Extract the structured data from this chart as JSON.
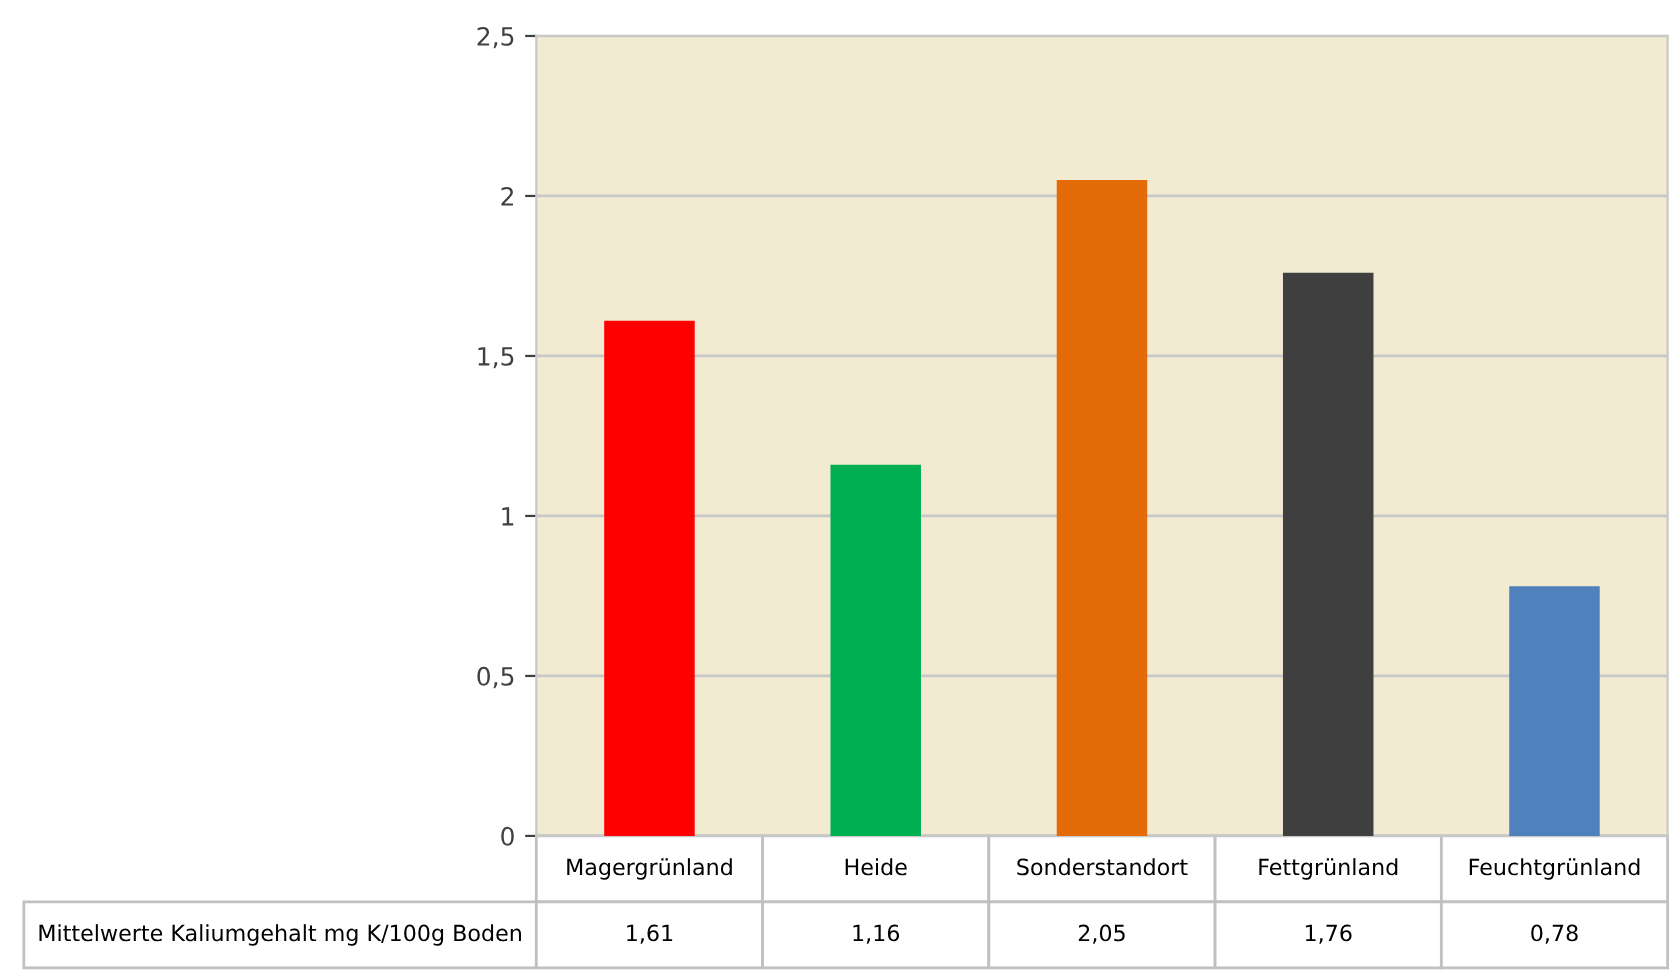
{
  "chart_data": {
    "type": "bar",
    "categories": [
      "Magergrünland",
      "Heide",
      "Sonderstandort",
      "Fettgrünland",
      "Feuchtgrünland"
    ],
    "series": [
      {
        "name": "Mittelwerte Kaliumgehalt mg K/100g Boden",
        "colors": [
          "#ff0000",
          "#00b050",
          "#e36c09",
          "#3f3f3f",
          "#4f81bd"
        ],
        "values": [
          1.61,
          1.16,
          2.05,
          1.76,
          0.78
        ],
        "value_labels": [
          "1,61",
          "1,16",
          "2,05",
          "1,76",
          "0,78"
        ]
      }
    ],
    "ylim": [
      0,
      2.5
    ],
    "yticks": [
      {
        "value": 0,
        "label": "0"
      },
      {
        "value": 0.5,
        "label": "0,5"
      },
      {
        "value": 1,
        "label": "1"
      },
      {
        "value": 1.5,
        "label": "1,5"
      },
      {
        "value": 2,
        "label": "2"
      },
      {
        "value": 2.5,
        "label": "2,5"
      }
    ],
    "grid": "y",
    "legend": false
  }
}
